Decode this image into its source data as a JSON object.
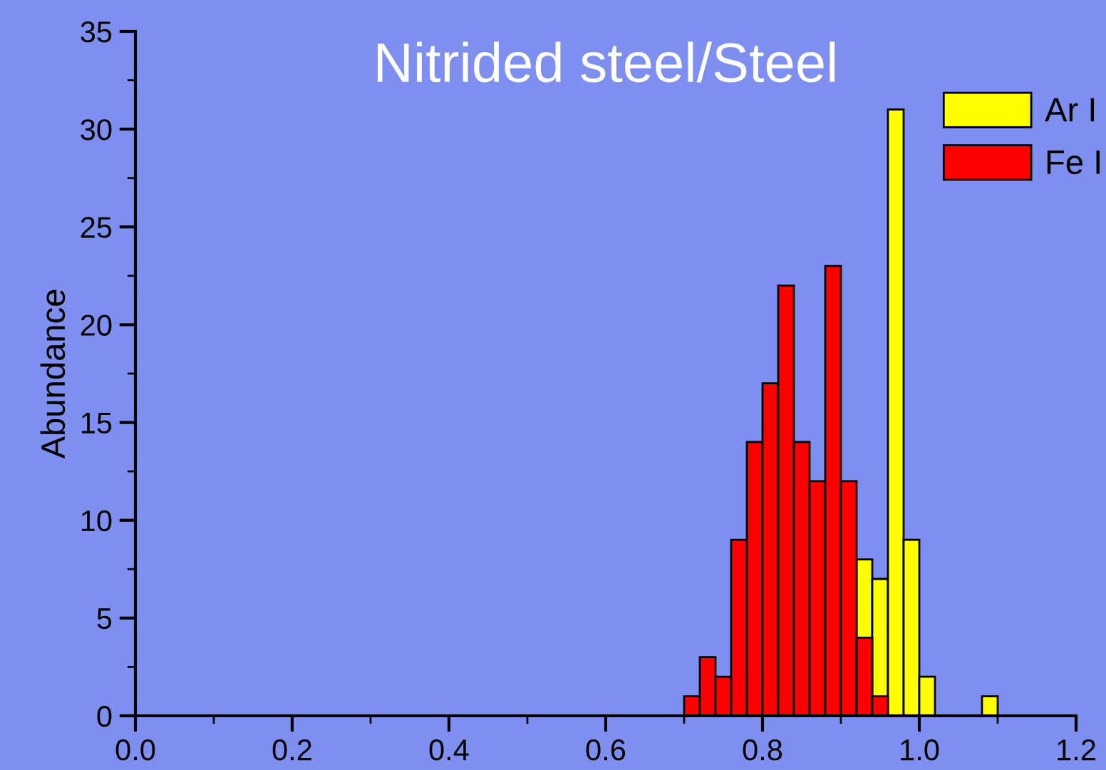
{
  "chart_data": {
    "type": "histogram",
    "title": "Nitrided steel/Steel",
    "ylabel": "Abundance",
    "bins": [
      0.7,
      0.72,
      0.74,
      0.76,
      0.78,
      0.8,
      0.82,
      0.84,
      0.86,
      0.88,
      0.9,
      0.92,
      0.94,
      0.96,
      0.98,
      1.0,
      1.02,
      1.04,
      1.06,
      1.08,
      1.1
    ],
    "series": [
      {
        "name": "Ar I",
        "color": "#ffff00",
        "values": [
          null,
          null,
          null,
          null,
          null,
          null,
          null,
          null,
          null,
          null,
          null,
          8,
          7,
          31,
          9,
          2,
          0,
          0,
          0,
          1
        ]
      },
      {
        "name": "Fe I",
        "color": "#ff0000",
        "values": [
          1,
          3,
          2,
          9,
          14,
          17,
          22,
          14,
          12,
          23,
          12,
          4,
          1,
          0,
          0,
          0,
          0,
          0,
          0,
          0
        ]
      }
    ],
    "xlim": [
      0,
      1.2
    ],
    "xticks": [
      {
        "value": 0,
        "label": "0.0"
      },
      0.2,
      0.4,
      0.6,
      0.8,
      {
        "value": 1.0,
        "label": "1.0"
      },
      {
        "value": 1.2,
        "label": "1.2"
      }
    ],
    "ylim": [
      0,
      35
    ],
    "yticks": [
      0,
      5,
      10,
      15,
      20,
      25,
      30,
      35
    ],
    "legend": "top right"
  }
}
